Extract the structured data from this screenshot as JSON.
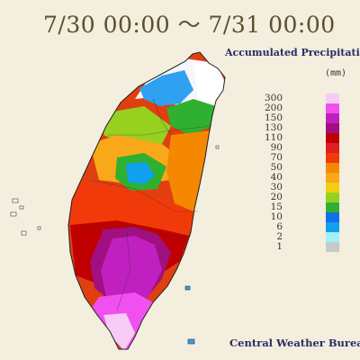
{
  "title": "7/30 00:00 ～ 7/31 00:00",
  "subtitle": "Accumulated Precipitation",
  "unit": "(mm)",
  "credit": "Central Weather Bureau",
  "legend": [
    {
      "label": "300",
      "color": "#f6ccf6"
    },
    {
      "label": "200",
      "color": "#f050f0"
    },
    {
      "label": "150",
      "color": "#c020c0"
    },
    {
      "label": "130",
      "color": "#a01080"
    },
    {
      "label": "110",
      "color": "#c00000"
    },
    {
      "label": "90",
      "color": "#e02020"
    },
    {
      "label": "70",
      "color": "#f03a0a"
    },
    {
      "label": "50",
      "color": "#f58800"
    },
    {
      "label": "40",
      "color": "#f8a818"
    },
    {
      "label": "30",
      "color": "#f0d010"
    },
    {
      "label": "20",
      "color": "#98d020"
    },
    {
      "label": "15",
      "color": "#30b030"
    },
    {
      "label": "10",
      "color": "#1070e8"
    },
    {
      "label": "6",
      "color": "#10a0f0"
    },
    {
      "label": "2",
      "color": "#a0f0f8"
    },
    {
      "label": "1",
      "color": "#c8c8c8"
    }
  ]
}
